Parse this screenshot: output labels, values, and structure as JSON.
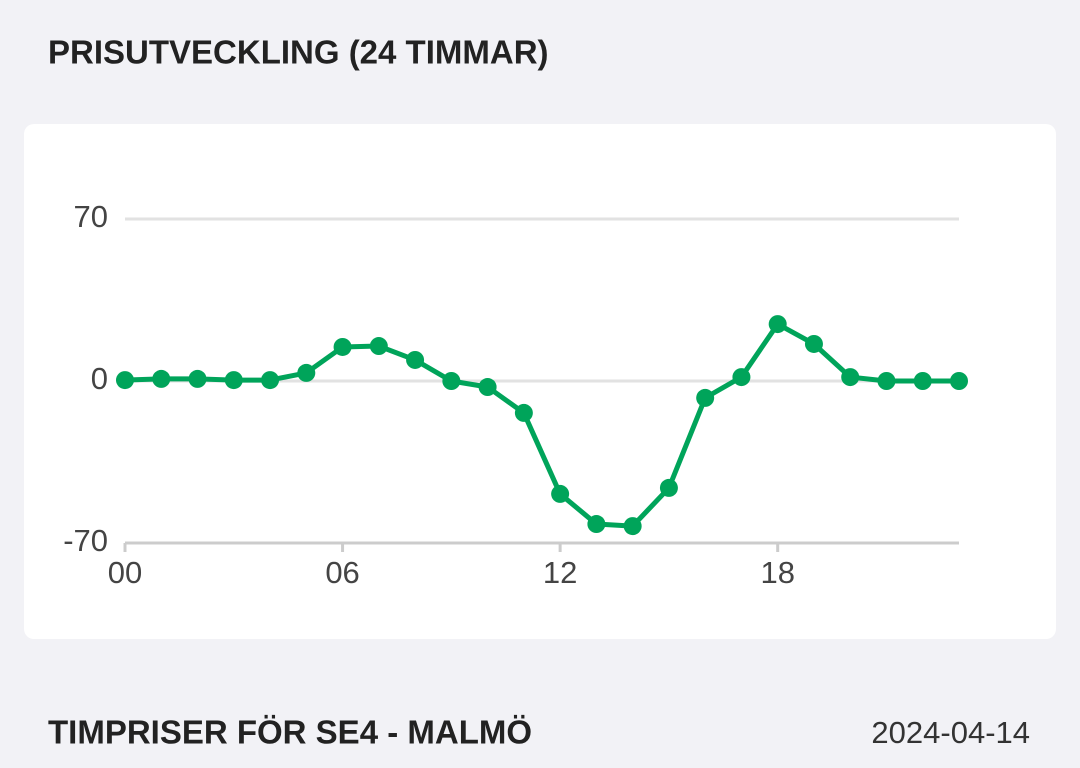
{
  "heading": "PRISUTVECKLING (24 TIMMAR)",
  "chart_data": {
    "type": "line",
    "x": [
      0,
      1,
      2,
      3,
      4,
      5,
      6,
      7,
      8,
      9,
      10,
      11,
      12,
      13,
      14,
      15,
      16,
      17,
      18,
      19,
      20,
      21,
      22,
      23
    ],
    "series": [
      {
        "color": "#00a45a",
        "values": [
          0.4,
          0.9,
          0.9,
          0.4,
          0.4,
          3.5,
          14.7,
          15.1,
          9.1,
          0,
          -2.6,
          -13.8,
          -48.8,
          -61.8,
          -62.7,
          -46.2,
          -7.3,
          1.7,
          24.6,
          16,
          1.7,
          0,
          0,
          0
        ]
      }
    ],
    "xlim": [
      0,
      23
    ],
    "xticks": [
      {
        "value": 0,
        "label": "00"
      },
      {
        "value": 6,
        "label": "06"
      },
      {
        "value": 12,
        "label": "12"
      },
      {
        "value": 18,
        "label": "18"
      }
    ],
    "ylim": [
      -70,
      70
    ],
    "yticks": [
      70,
      0,
      -70
    ],
    "grid": true
  },
  "section": {
    "title": "TIMPRISER FÖR SE4 - MALMÖ",
    "date": "2024-04-14"
  }
}
